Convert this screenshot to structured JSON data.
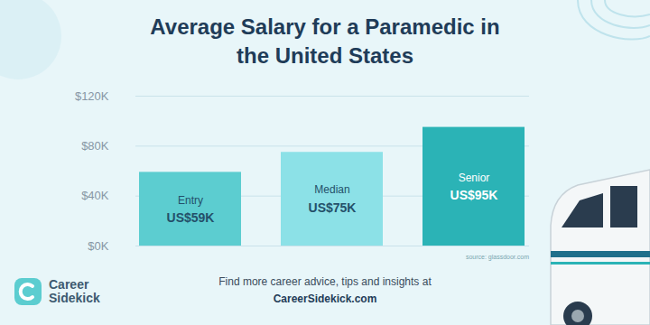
{
  "chart_data": {
    "type": "bar",
    "title": "Average Salary for a Paramedic in the United States",
    "categories": [
      "Entry",
      "Median",
      "Senior"
    ],
    "values": [
      59,
      75,
      95
    ],
    "value_labels": [
      "US$59K",
      "US$75K",
      "US$95K"
    ],
    "data_labels": true,
    "colors": [
      "#5ccdd0",
      "#8ce1e7",
      "#2bb3b6"
    ],
    "ylim": [
      0,
      120
    ],
    "yticks": [
      {
        "value": 0,
        "label": "$0K"
      },
      {
        "value": 40,
        "label": "$40K"
      },
      {
        "value": 80,
        "label": "$80K"
      },
      {
        "value": 120,
        "label": "$120K"
      }
    ],
    "grid": true,
    "source": "source: glassdoor.com",
    "footer": "Find more career advice, tips and insights at",
    "footer_link": "CareerSidekick.com",
    "logo_text": [
      "Career",
      "Sidekick"
    ]
  }
}
